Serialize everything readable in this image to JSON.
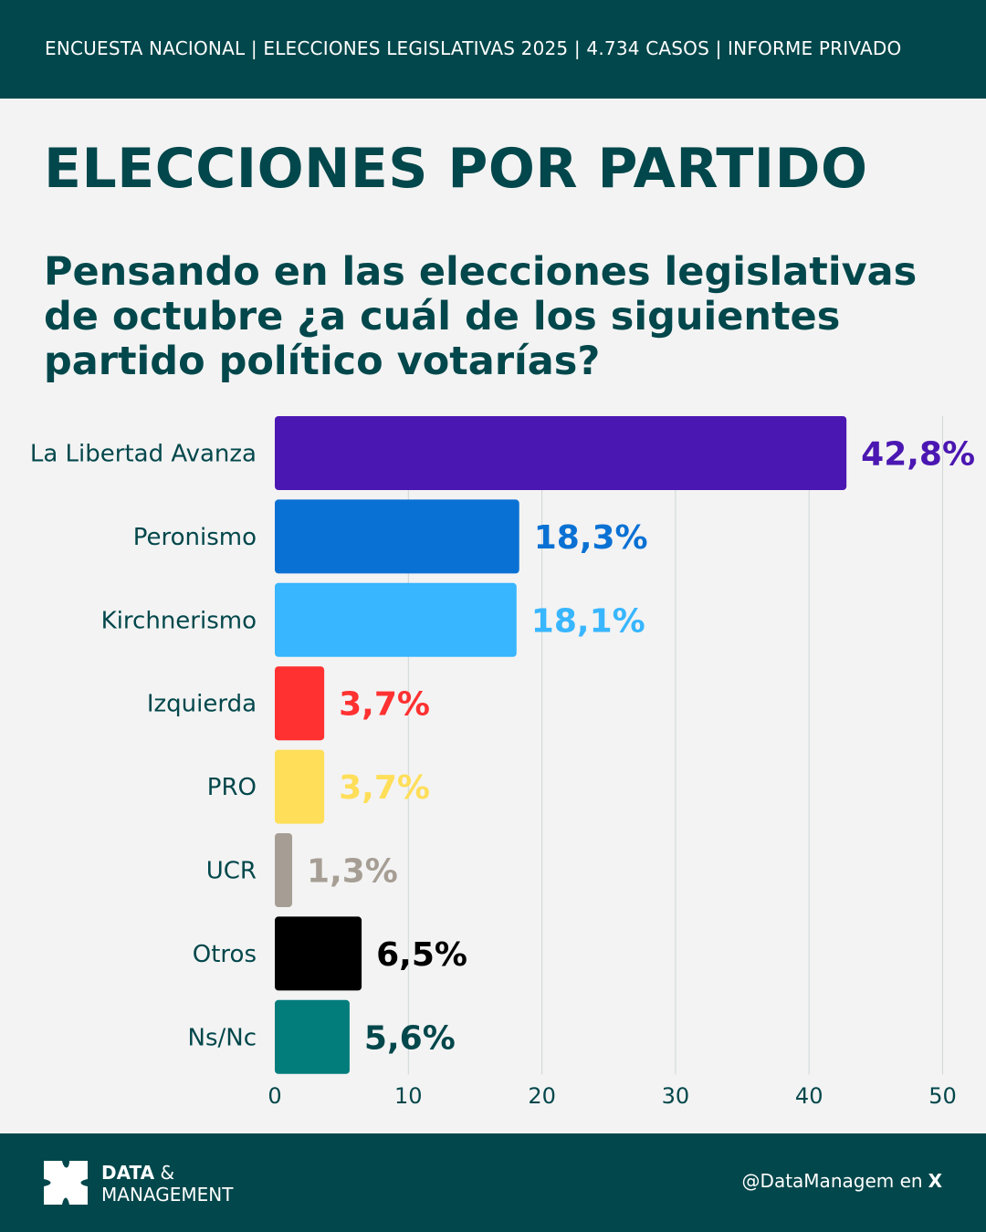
{
  "header": {
    "meta": "ENCUESTA NACIONAL | ELECCIONES LEGISLATIVAS 2025 | 4.734 CASOS | INFORME PRIVADO"
  },
  "title": "ELECCIONES POR PARTIDO",
  "question": "Pensando en las elecciones legislativas de octubre ¿a cuál de los siguientes partido político votarías?",
  "chart_data": {
    "type": "bar",
    "orientation": "horizontal",
    "categories": [
      "La Libertad Avanza",
      "Peronismo",
      "Kirchnerismo",
      "Izquierda",
      "PRO",
      "UCR",
      "Otros",
      "Ns/Nc"
    ],
    "values": [
      42.8,
      18.3,
      18.1,
      3.7,
      3.7,
      1.3,
      6.5,
      5.6
    ],
    "labels": [
      "42,8%",
      "18,3%",
      "18,1%",
      "3,7%",
      "3,7%",
      "1,3%",
      "6,5%",
      "5,6%"
    ],
    "colors": [
      "#4b17b2",
      "#0a71d4",
      "#38b6ff",
      "#ff3131",
      "#ffde59",
      "#a69e94",
      "#000000",
      "#037c7c"
    ],
    "label_colors": [
      "#4b17b2",
      "#0a71d4",
      "#38b6ff",
      "#ff3131",
      "#ffde59",
      "#a69e94",
      "#000000",
      "#02474b"
    ],
    "xlim": [
      0,
      50
    ],
    "xticks": [
      0,
      10,
      20,
      30,
      40,
      50
    ],
    "grid": true,
    "xlabel": "",
    "ylabel": ""
  },
  "footer": {
    "brand_line1_bold": "DATA",
    "brand_line1_rest": "&",
    "brand_line2": "MANAGEMENT",
    "handle": "@DataManagem en",
    "handle_network": "X"
  }
}
